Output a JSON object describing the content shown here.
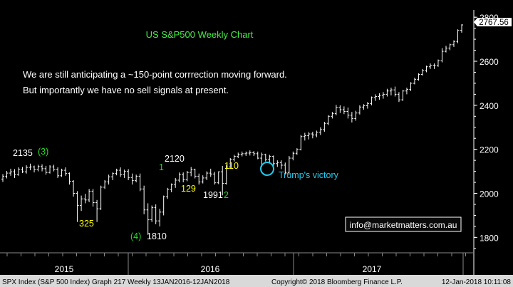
{
  "chart_data": {
    "type": "ohlc",
    "title": "US S&P500 Weekly Chart",
    "commentary": [
      "We are still anticipating a ~150-point corrrection moving forward.",
      "But importantly we have no sell signals at present."
    ],
    "y_axis": {
      "min": 1730,
      "max": 2820,
      "ticks": [
        1800,
        2000,
        2200,
        2400,
        2600,
        2800
      ],
      "side": "right"
    },
    "x_axis": {
      "labels": [
        "2015",
        "2016",
        "2017"
      ]
    },
    "last_price": "2767.56",
    "series": [
      {
        "values": [
          [
            2065,
            2088,
            2052,
            2078
          ],
          [
            2078,
            2102,
            2068,
            2092
          ],
          [
            2092,
            2112,
            2080,
            2098
          ],
          [
            2098,
            2110,
            2070,
            2085
          ],
          [
            2085,
            2118,
            2080,
            2110
          ],
          [
            2110,
            2120,
            2092,
            2098
          ],
          [
            2098,
            2128,
            2090,
            2118
          ],
          [
            2118,
            2135,
            2105,
            2120
          ],
          [
            2120,
            2126,
            2095,
            2108
          ],
          [
            2108,
            2130,
            2100,
            2122
          ],
          [
            2122,
            2132,
            2100,
            2112
          ],
          [
            2112,
            2125,
            2085,
            2095
          ],
          [
            2095,
            2128,
            2090,
            2120
          ],
          [
            2120,
            2130,
            2100,
            2108
          ],
          [
            2108,
            2118,
            2070,
            2080
          ],
          [
            2080,
            2112,
            2075,
            2105
          ],
          [
            2105,
            2118,
            2080,
            2090
          ],
          [
            2090,
            2095,
            2040,
            2055
          ],
          [
            2055,
            2060,
            1985,
            2000
          ],
          [
            2000,
            2010,
            1870,
            1945
          ],
          [
            1945,
            1990,
            1920,
            1975
          ],
          [
            1975,
            1998,
            1955,
            1970
          ],
          [
            1970,
            2020,
            1960,
            2010
          ],
          [
            2010,
            2020,
            1940,
            1958
          ],
          [
            1958,
            1970,
            1870,
            1930
          ],
          [
            1930,
            2035,
            1925,
            2028
          ],
          [
            2028,
            2060,
            2020,
            2052
          ],
          [
            2052,
            2085,
            2040,
            2075
          ],
          [
            2075,
            2095,
            2060,
            2090
          ],
          [
            2090,
            2112,
            2082,
            2105
          ],
          [
            2105,
            2118,
            2075,
            2085
          ],
          [
            2085,
            2108,
            2070,
            2100
          ],
          [
            2100,
            2110,
            2060,
            2072
          ],
          [
            2072,
            2090,
            2040,
            2058
          ],
          [
            2058,
            2085,
            2050,
            2078
          ],
          [
            2078,
            2090,
            2010,
            2020
          ],
          [
            2020,
            2035,
            1905,
            1925
          ],
          [
            1925,
            1955,
            1812,
            1880
          ],
          [
            1880,
            1945,
            1870,
            1935
          ],
          [
            1935,
            1950,
            1860,
            1875
          ],
          [
            1875,
            1930,
            1850,
            1915
          ],
          [
            1915,
            1990,
            1900,
            1985
          ],
          [
            1985,
            2025,
            1975,
            2018
          ],
          [
            2018,
            2045,
            2005,
            2040
          ],
          [
            2040,
            2070,
            2025,
            2060
          ],
          [
            2060,
            2095,
            2050,
            2085
          ],
          [
            2085,
            2095,
            2050,
            2062
          ],
          [
            2062,
            2102,
            2055,
            2095
          ],
          [
            2095,
            2120,
            2078,
            2108
          ],
          [
            2108,
            2112,
            2068,
            2078
          ],
          [
            2078,
            2090,
            2040,
            2052
          ],
          [
            2052,
            2082,
            2045,
            2070
          ],
          [
            2070,
            2100,
            2060,
            2092
          ],
          [
            2092,
            2112,
            2075,
            2088
          ],
          [
            2088,
            2098,
            2040,
            2048
          ],
          [
            2048,
            2100,
            2042,
            2098
          ],
          [
            2098,
            2125,
            1991,
            2045
          ],
          [
            2045,
            2130,
            2040,
            2120
          ],
          [
            2120,
            2160,
            2115,
            2155
          ],
          [
            2155,
            2175,
            2145,
            2168
          ],
          [
            2168,
            2185,
            2160,
            2178
          ],
          [
            2178,
            2190,
            2168,
            2180
          ],
          [
            2180,
            2190,
            2170,
            2183
          ],
          [
            2183,
            2195,
            2172,
            2185
          ],
          [
            2185,
            2192,
            2170,
            2180
          ],
          [
            2180,
            2190,
            2155,
            2160
          ],
          [
            2160,
            2185,
            2120,
            2175
          ],
          [
            2175,
            2180,
            2145,
            2155
          ],
          [
            2155,
            2175,
            2140,
            2168
          ],
          [
            2168,
            2172,
            2125,
            2135
          ],
          [
            2135,
            2150,
            2120,
            2140
          ],
          [
            2140,
            2150,
            2110,
            2128
          ],
          [
            2128,
            2140,
            2085,
            2095
          ],
          [
            2095,
            2170,
            2085,
            2160
          ],
          [
            2160,
            2190,
            2150,
            2182
          ],
          [
            2182,
            2205,
            2175,
            2200
          ],
          [
            2200,
            2265,
            2195,
            2258
          ],
          [
            2258,
            2275,
            2240,
            2262
          ],
          [
            2262,
            2278,
            2245,
            2270
          ],
          [
            2270,
            2280,
            2250,
            2265
          ],
          [
            2265,
            2285,
            2255,
            2278
          ],
          [
            2278,
            2300,
            2265,
            2290
          ],
          [
            2290,
            2325,
            2280,
            2318
          ],
          [
            2318,
            2355,
            2310,
            2350
          ],
          [
            2350,
            2370,
            2340,
            2362
          ],
          [
            2362,
            2402,
            2355,
            2390
          ],
          [
            2390,
            2400,
            2365,
            2380
          ],
          [
            2380,
            2395,
            2360,
            2372
          ],
          [
            2372,
            2390,
            2340,
            2355
          ],
          [
            2355,
            2370,
            2322,
            2340
          ],
          [
            2340,
            2375,
            2330,
            2365
          ],
          [
            2365,
            2400,
            2358,
            2392
          ],
          [
            2392,
            2405,
            2380,
            2398
          ],
          [
            2398,
            2415,
            2385,
            2408
          ],
          [
            2408,
            2440,
            2400,
            2435
          ],
          [
            2435,
            2450,
            2420,
            2440
          ],
          [
            2440,
            2455,
            2425,
            2445
          ],
          [
            2445,
            2460,
            2430,
            2450
          ],
          [
            2450,
            2475,
            2440,
            2465
          ],
          [
            2465,
            2480,
            2445,
            2470
          ],
          [
            2470,
            2485,
            2440,
            2450
          ],
          [
            2450,
            2460,
            2415,
            2425
          ],
          [
            2425,
            2470,
            2420,
            2465
          ],
          [
            2465,
            2480,
            2450,
            2472
          ],
          [
            2472,
            2505,
            2465,
            2500
          ],
          [
            2500,
            2525,
            2495,
            2518
          ],
          [
            2518,
            2545,
            2512,
            2540
          ],
          [
            2540,
            2565,
            2535,
            2558
          ],
          [
            2558,
            2580,
            2550,
            2575
          ],
          [
            2575,
            2590,
            2565,
            2582
          ],
          [
            2582,
            2590,
            2565,
            2580
          ],
          [
            2580,
            2608,
            2575,
            2602
          ],
          [
            2602,
            2660,
            2595,
            2645
          ],
          [
            2645,
            2670,
            2640,
            2660
          ],
          [
            2660,
            2680,
            2650,
            2675
          ],
          [
            2675,
            2695,
            2665,
            2690
          ],
          [
            2690,
            2745,
            2682,
            2740
          ],
          [
            2740,
            2768,
            2730,
            2765
          ]
        ]
      }
    ],
    "annotations": [
      {
        "text": "2135",
        "color": "#ffffff"
      },
      {
        "text": "(3)",
        "color": "#22dd22"
      },
      {
        "text": "325",
        "color": "#ffff00"
      },
      {
        "text": "(4)",
        "color": "#22dd22"
      },
      {
        "text": "1810",
        "color": "#ffffff"
      },
      {
        "text": "2120",
        "color": "#ffffff"
      },
      {
        "text": "1",
        "color": "#22dd22"
      },
      {
        "text": "129",
        "color": "#ffff00"
      },
      {
        "text": "110",
        "color": "#ffff00"
      },
      {
        "text": "1991",
        "color": "#ffffff"
      },
      {
        "text": "2",
        "color": "#22dd22"
      },
      {
        "text": "Trump's victory",
        "color": "#22ccee"
      }
    ],
    "watermark": "info@marketmatters.com.au",
    "footer": {
      "left": "SPX Index (S&P 500 Index) Graph 217  Weekly 13JAN2016-12JAN2018",
      "middle": "Copyright© 2018 Bloomberg Finance L.P.",
      "right": "12-Jan-2018 10:11:08"
    },
    "colors": {
      "background": "#000000",
      "bars": "#ffffff",
      "title": "#44ee44",
      "axis": "#ffffff",
      "footer_bg": "#d9d9d9"
    }
  }
}
